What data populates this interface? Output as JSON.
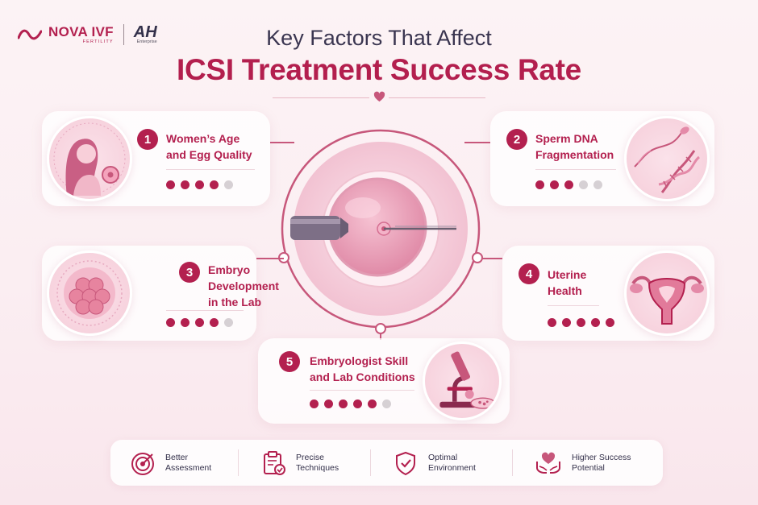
{
  "header": {
    "brand": "NOVA IVF",
    "brand_sub": "FERTILITY",
    "partner": "AH",
    "partner_sub": "Enterprise",
    "title_line1": "Key Factors That Affect",
    "title_line2": "ICSI Treatment Success Rate"
  },
  "factors": [
    {
      "number": "1",
      "line1": "Women’s Age",
      "line2": "and Egg Quality",
      "line3": "",
      "rating": 4,
      "max": 5
    },
    {
      "number": "2",
      "line1": "Sperm DNA",
      "line2": "Fragmentation",
      "line3": "",
      "rating": 3,
      "max": 5
    },
    {
      "number": "3",
      "line1": "Embryo",
      "line2": "Development",
      "line3": "in the Lab",
      "rating": 4,
      "max": 5
    },
    {
      "number": "4",
      "line1": "Uterine",
      "line2": "Health",
      "line3": "",
      "rating": 5,
      "max": 5
    },
    {
      "number": "5",
      "line1": "Embryologist Skill",
      "line2": "and Lab Conditions",
      "line3": "",
      "rating": 5,
      "max": 6
    }
  ],
  "benefits": [
    {
      "icon": "target-icon",
      "line1": "Better",
      "line2": "Assessment"
    },
    {
      "icon": "clipboard-check-icon",
      "line1": "Precise",
      "line2": "Techniques"
    },
    {
      "icon": "shield-check-icon",
      "line1": "Optimal",
      "line2": "Environment"
    },
    {
      "icon": "hands-heart-icon",
      "line1": "Higher Success",
      "line2": "Potential"
    }
  ],
  "colors": {
    "accent": "#b3204f",
    "inactive_dot": "#d6d0d4",
    "background": "#fcf3f5"
  }
}
